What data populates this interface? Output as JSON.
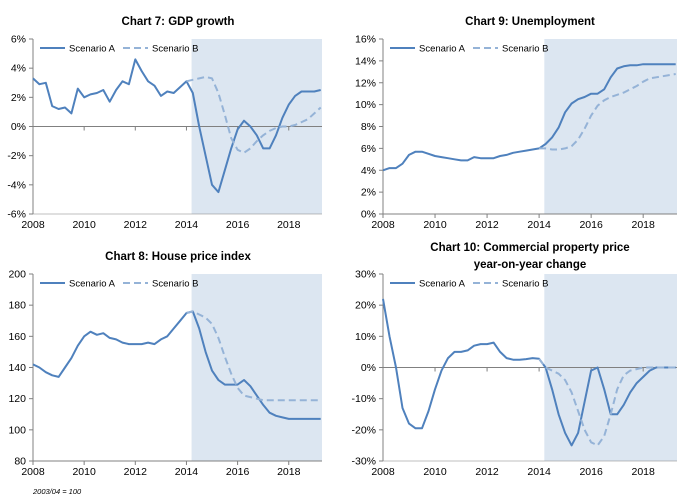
{
  "colors": {
    "scenario_a": "#4f81bd",
    "scenario_b": "#95b3d7",
    "shade": "#dce6f1",
    "axis": "#808080"
  },
  "note": "2003/04 = 100",
  "chart_data": [
    {
      "type": "line",
      "title": "Chart 7: GDP growth",
      "title_lines": [
        "Chart 7: GDP growth"
      ],
      "xlim": [
        2008,
        2019.3
      ],
      "ylim": [
        -6,
        6
      ],
      "y_step": 2,
      "y_suffix": "%",
      "x_ticks": [
        2008,
        2010,
        2012,
        2014,
        2016,
        2018
      ],
      "x_tick_labels": [
        "2008",
        "2010",
        "2012",
        "2014",
        "2016",
        "2018"
      ],
      "shade_start": 2014.2,
      "legend": [
        "Scenario A",
        "Scenario B"
      ],
      "series": [
        {
          "name": "Scenario A",
          "style": "solid",
          "x": [
            2008.0,
            2008.25,
            2008.5,
            2008.75,
            2009.0,
            2009.25,
            2009.5,
            2009.75,
            2010.0,
            2010.25,
            2010.5,
            2010.75,
            2011.0,
            2011.25,
            2011.5,
            2011.75,
            2012.0,
            2012.25,
            2012.5,
            2012.75,
            2013.0,
            2013.25,
            2013.5,
            2013.75,
            2014.0,
            2014.25,
            2014.5,
            2014.75,
            2015.0,
            2015.25,
            2015.5,
            2015.75,
            2016.0,
            2016.25,
            2016.5,
            2016.75,
            2017.0,
            2017.25,
            2017.5,
            2017.75,
            2018.0,
            2018.25,
            2018.5,
            2018.75,
            2019.0,
            2019.25
          ],
          "y": [
            3.3,
            2.9,
            3.0,
            1.4,
            1.2,
            1.3,
            0.9,
            2.6,
            2.0,
            2.2,
            2.3,
            2.5,
            1.7,
            2.5,
            3.1,
            2.9,
            4.6,
            3.8,
            3.1,
            2.8,
            2.1,
            2.4,
            2.3,
            2.7,
            3.1,
            2.3,
            0.0,
            -2.0,
            -4.0,
            -4.5,
            -3.0,
            -1.5,
            -0.2,
            0.4,
            0.0,
            -0.6,
            -1.5,
            -1.5,
            -0.6,
            0.6,
            1.5,
            2.1,
            2.4,
            2.4,
            2.4,
            2.5
          ]
        },
        {
          "name": "Scenario B",
          "style": "dashed",
          "x": [
            2014.0,
            2014.25,
            2014.5,
            2014.75,
            2015.0,
            2015.25,
            2015.5,
            2015.75,
            2016.0,
            2016.25,
            2016.5,
            2016.75,
            2017.0,
            2017.25,
            2017.5,
            2017.75,
            2018.0,
            2018.25,
            2018.5,
            2018.75,
            2019.0,
            2019.25
          ],
          "y": [
            3.1,
            3.2,
            3.3,
            3.4,
            3.3,
            2.3,
            0.8,
            -0.8,
            -1.6,
            -1.8,
            -1.5,
            -1.0,
            -0.6,
            -0.3,
            -0.1,
            0.0,
            0.0,
            0.1,
            0.3,
            0.5,
            0.9,
            1.3
          ]
        }
      ]
    },
    {
      "type": "line",
      "title": "Chart 9: Unemployment",
      "title_lines": [
        "Chart 9: Unemployment"
      ],
      "xlim": [
        2008,
        2019.3
      ],
      "ylim": [
        0,
        16
      ],
      "y_step": 2,
      "y_suffix": "%",
      "x_ticks": [
        2008,
        2010,
        2012,
        2014,
        2016,
        2018
      ],
      "x_tick_labels": [
        "2008",
        "2010",
        "2012",
        "2014",
        "2016",
        "2018"
      ],
      "shade_start": 2014.2,
      "legend": [
        "Scenario A",
        "Scenario B"
      ],
      "series": [
        {
          "name": "Scenario A",
          "style": "solid",
          "x": [
            2008.0,
            2008.25,
            2008.5,
            2008.75,
            2009.0,
            2009.25,
            2009.5,
            2009.75,
            2010.0,
            2010.25,
            2010.5,
            2010.75,
            2011.0,
            2011.25,
            2011.5,
            2011.75,
            2012.0,
            2012.25,
            2012.5,
            2012.75,
            2013.0,
            2013.25,
            2013.5,
            2013.75,
            2014.0,
            2014.25,
            2014.5,
            2014.75,
            2015.0,
            2015.25,
            2015.5,
            2015.75,
            2016.0,
            2016.25,
            2016.5,
            2016.75,
            2017.0,
            2017.25,
            2017.5,
            2017.75,
            2018.0,
            2018.25,
            2018.5,
            2018.75,
            2019.0,
            2019.25
          ],
          "y": [
            4.0,
            4.2,
            4.2,
            4.6,
            5.4,
            5.7,
            5.7,
            5.5,
            5.3,
            5.2,
            5.1,
            5.0,
            4.9,
            4.9,
            5.2,
            5.1,
            5.1,
            5.1,
            5.3,
            5.4,
            5.6,
            5.7,
            5.8,
            5.9,
            6.0,
            6.4,
            7.0,
            7.9,
            9.3,
            10.1,
            10.5,
            10.7,
            11.0,
            11.0,
            11.4,
            12.5,
            13.3,
            13.5,
            13.6,
            13.6,
            13.7,
            13.7,
            13.7,
            13.7,
            13.7,
            13.7
          ]
        },
        {
          "name": "Scenario B",
          "style": "dashed",
          "x": [
            2014.0,
            2014.25,
            2014.5,
            2014.75,
            2015.0,
            2015.25,
            2015.5,
            2015.75,
            2016.0,
            2016.25,
            2016.5,
            2016.75,
            2017.0,
            2017.25,
            2017.5,
            2017.75,
            2018.0,
            2018.25,
            2018.5,
            2018.75,
            2019.0,
            2019.25
          ],
          "y": [
            6.0,
            6.0,
            5.9,
            5.9,
            6.0,
            6.2,
            6.8,
            7.8,
            9.0,
            9.9,
            10.4,
            10.7,
            10.9,
            11.1,
            11.4,
            11.7,
            12.1,
            12.4,
            12.5,
            12.6,
            12.7,
            12.8
          ]
        }
      ]
    },
    {
      "type": "line",
      "title": "Chart 8: House price index",
      "title_lines": [
        "Chart 8: House price index"
      ],
      "xlim": [
        2008,
        2019.3
      ],
      "ylim": [
        80,
        200
      ],
      "y_step": 20,
      "y_suffix": "",
      "x_ticks": [
        2008,
        2010,
        2012,
        2014,
        2016,
        2018
      ],
      "x_tick_labels": [
        "2008",
        "2010",
        "2012",
        "2014",
        "2016",
        "2018"
      ],
      "shade_start": 2014.2,
      "legend": [
        "Scenario A",
        "Scenario B"
      ],
      "series": [
        {
          "name": "Scenario A",
          "style": "solid",
          "x": [
            2008.0,
            2008.25,
            2008.5,
            2008.75,
            2009.0,
            2009.25,
            2009.5,
            2009.75,
            2010.0,
            2010.25,
            2010.5,
            2010.75,
            2011.0,
            2011.25,
            2011.5,
            2011.75,
            2012.0,
            2012.25,
            2012.5,
            2012.75,
            2013.0,
            2013.25,
            2013.5,
            2013.75,
            2014.0,
            2014.25,
            2014.5,
            2014.75,
            2015.0,
            2015.25,
            2015.5,
            2015.75,
            2016.0,
            2016.25,
            2016.5,
            2016.75,
            2017.0,
            2017.25,
            2017.5,
            2017.75,
            2018.0,
            2018.25,
            2018.5,
            2018.75,
            2019.0,
            2019.25
          ],
          "y": [
            142,
            140,
            137,
            135,
            134,
            140,
            146,
            154,
            160,
            163,
            161,
            162,
            159,
            158,
            156,
            155,
            155,
            155,
            156,
            155,
            158,
            160,
            165,
            170,
            175,
            176,
            165,
            150,
            138,
            132,
            129,
            129,
            129,
            132,
            128,
            122,
            116,
            111,
            109,
            108,
            107,
            107,
            107,
            107,
            107,
            107
          ]
        },
        {
          "name": "Scenario B",
          "style": "dashed",
          "x": [
            2014.0,
            2014.25,
            2014.5,
            2014.75,
            2015.0,
            2015.25,
            2015.5,
            2015.75,
            2016.0,
            2016.25,
            2016.5,
            2016.75,
            2017.0,
            2017.25,
            2017.5,
            2017.75,
            2018.0,
            2018.25,
            2018.5,
            2018.75,
            2019.0,
            2019.25
          ],
          "y": [
            175,
            176,
            174,
            172,
            168,
            159,
            147,
            136,
            127,
            122,
            121,
            120,
            119,
            119,
            119,
            119,
            119,
            119,
            119,
            119,
            119,
            119
          ]
        }
      ]
    },
    {
      "type": "line",
      "title": "Chart 10: Commercial property price year-on-year change",
      "title_lines": [
        "Chart 10: Commercial  property price",
        "year-on-year change"
      ],
      "xlim": [
        2008,
        2019.3
      ],
      "ylim": [
        -30,
        30
      ],
      "y_step": 10,
      "y_suffix": "%",
      "x_ticks": [
        2008,
        2010,
        2012,
        2014,
        2016,
        2018
      ],
      "x_tick_labels": [
        "2008",
        "2010",
        "2012",
        "2014",
        "2016",
        "2018"
      ],
      "shade_start": 2014.2,
      "legend": [
        "Scenario A",
        "Scenario B"
      ],
      "series": [
        {
          "name": "Scenario A",
          "style": "solid",
          "x": [
            2008.0,
            2008.25,
            2008.5,
            2008.75,
            2009.0,
            2009.25,
            2009.5,
            2009.75,
            2010.0,
            2010.25,
            2010.5,
            2010.75,
            2011.0,
            2011.25,
            2011.5,
            2011.75,
            2012.0,
            2012.25,
            2012.5,
            2012.75,
            2013.0,
            2013.25,
            2013.5,
            2013.75,
            2014.0,
            2014.25,
            2014.5,
            2014.75,
            2015.0,
            2015.25,
            2015.5,
            2015.75,
            2016.0,
            2016.25,
            2016.5,
            2016.75,
            2017.0,
            2017.25,
            2017.5,
            2017.75,
            2018.0,
            2018.25,
            2018.5,
            2018.75,
            2019.0,
            2019.25
          ],
          "y": [
            22,
            10,
            0,
            -13,
            -18,
            -19.5,
            -19.5,
            -14,
            -7,
            -1,
            3,
            5,
            5,
            5.5,
            7,
            7.5,
            7.5,
            8,
            5,
            3,
            2.5,
            2.5,
            2.7,
            3,
            2.8,
            0,
            -7,
            -15,
            -21,
            -25,
            -21,
            -11,
            -1,
            0,
            -7,
            -15,
            -15,
            -12,
            -8,
            -5,
            -3,
            -1,
            0,
            0,
            0,
            0
          ]
        },
        {
          "name": "Scenario B",
          "style": "dashed",
          "x": [
            2014.0,
            2014.25,
            2014.5,
            2014.75,
            2015.0,
            2015.25,
            2015.5,
            2015.75,
            2016.0,
            2016.25,
            2016.5,
            2016.75,
            2017.0,
            2017.25,
            2017.5,
            2017.75,
            2018.0,
            2018.25,
            2018.5,
            2018.75,
            2019.0,
            2019.25
          ],
          "y": [
            2.8,
            0,
            -1,
            -2,
            -4,
            -8,
            -14,
            -20,
            -24,
            -25,
            -22,
            -15,
            -7,
            -2.5,
            -1,
            -0.5,
            0,
            0,
            0,
            0,
            0,
            0
          ]
        }
      ]
    }
  ]
}
